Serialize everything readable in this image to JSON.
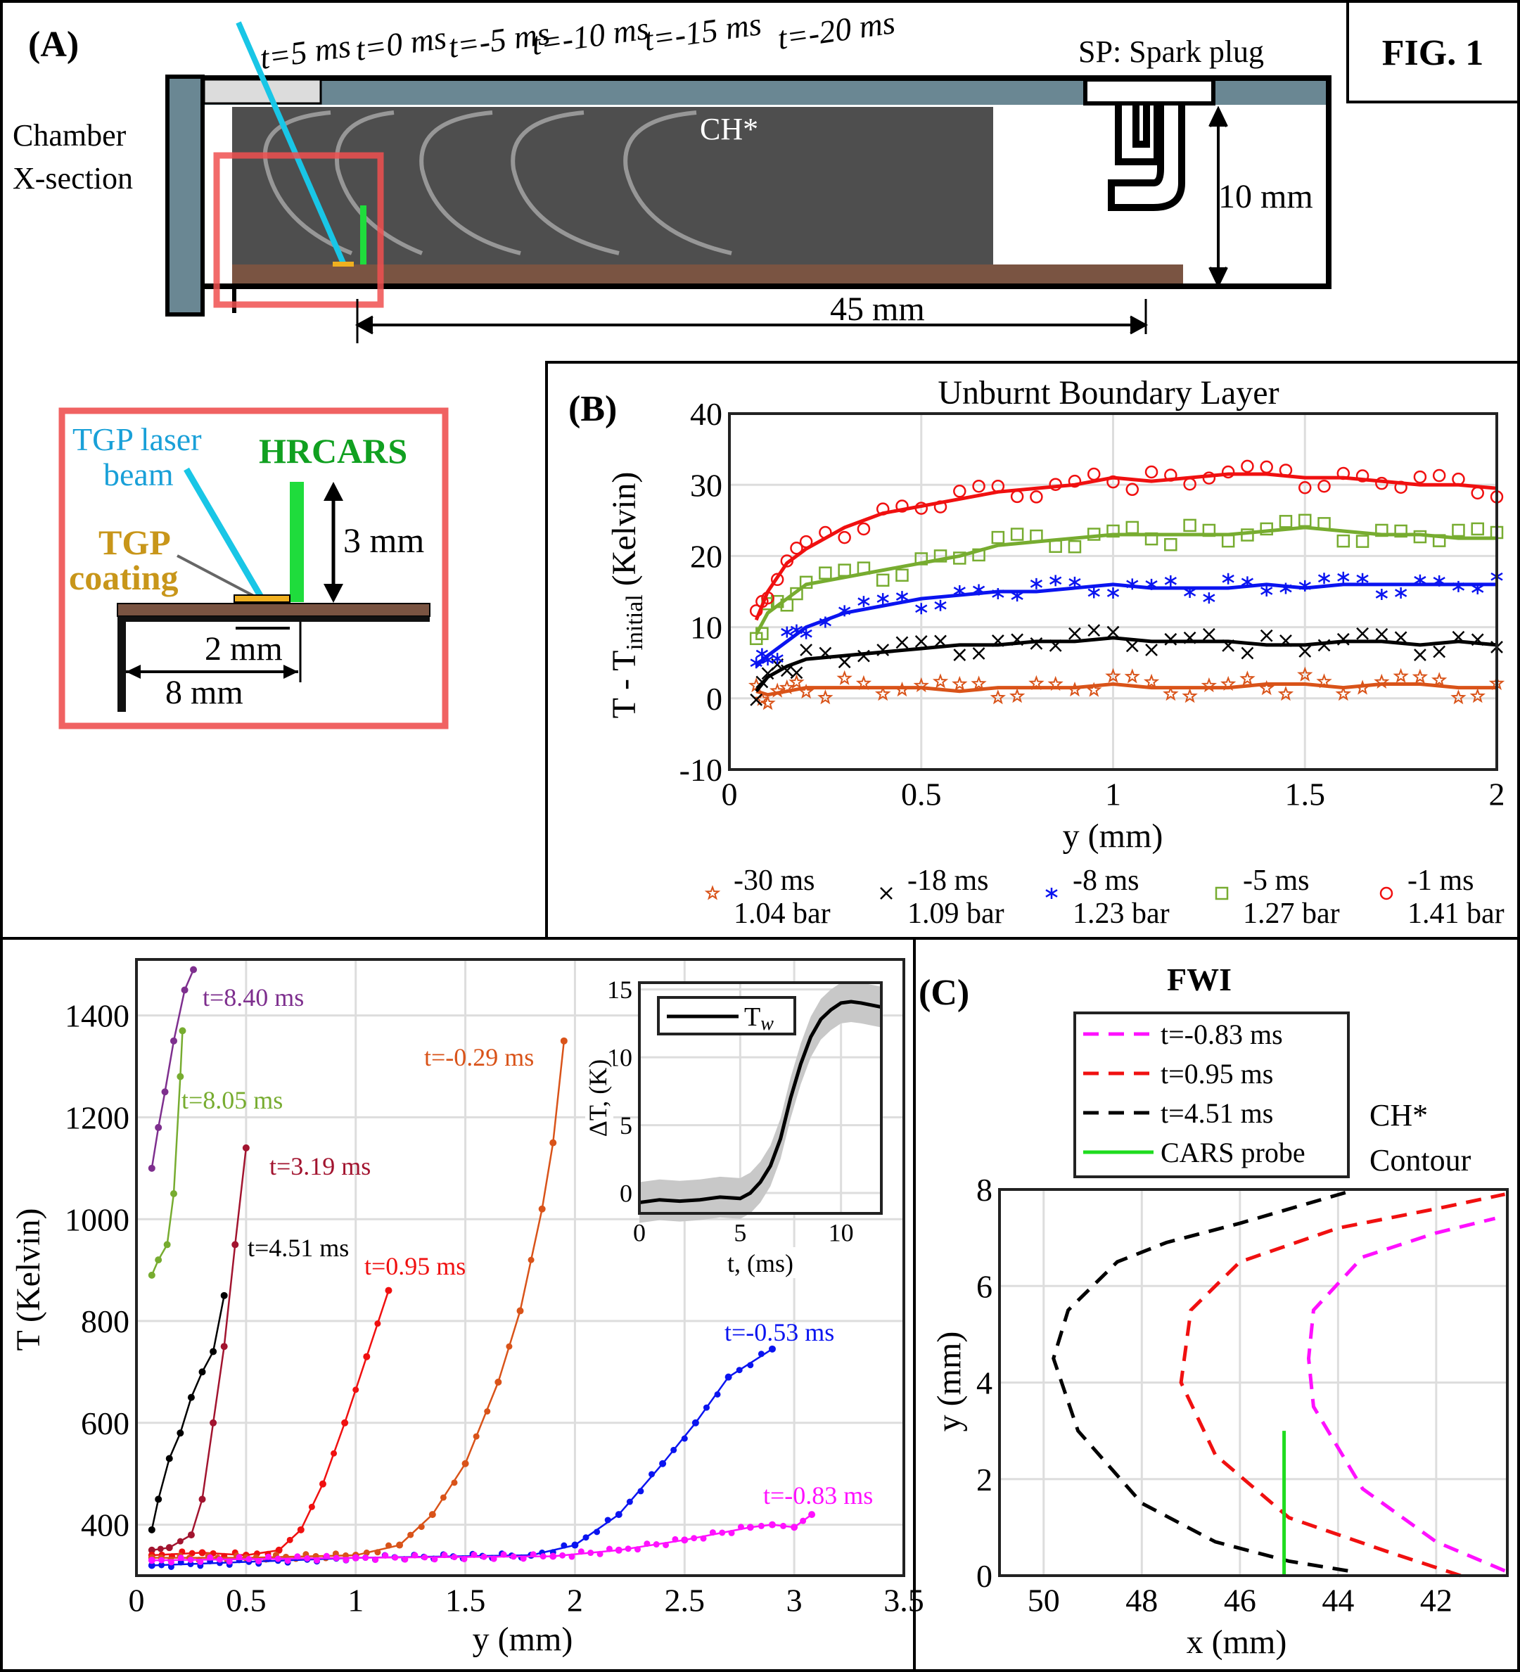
{
  "figure_label": "FIG. 1",
  "panel_a": {
    "label": "(A)",
    "chamber_label_1": "Chamber",
    "chamber_label_2": "X-section",
    "times": [
      "t=5 ms",
      "t=0 ms",
      "t=-5 ms",
      "t=-10 ms",
      "t=-15 ms",
      "t=-20 ms"
    ],
    "spark_plug": "SP: Spark plug",
    "ch_star": "CH*",
    "height_dim": "10 mm",
    "length_dim": "45 mm",
    "inset": {
      "laser_1": "TGP laser",
      "laser_2": "beam",
      "hrcars": "HRCARS",
      "coating_1": "TGP",
      "coating_2": "coating",
      "dim_3mm": "3 mm",
      "dim_2mm": "2 mm",
      "dim_8mm": "8 mm"
    },
    "colors": {
      "wall": "#6a8793",
      "floor": "#7a5442",
      "laser": "#19c6e6",
      "cars": "#1fdc3c",
      "coating": "#f0b020",
      "inset_border": "#f06262"
    }
  },
  "chart_data": [
    {
      "id": "panel-b",
      "panel_label": "(B)",
      "type": "scatter",
      "title": "Unburnt Boundary Layer",
      "xlabel": "y (mm)",
      "ylabel": "T - T",
      "ylabel_sub": "initial",
      "ylabel_tail": " (Kelvin)",
      "xlim": [
        0,
        2
      ],
      "ylim": [
        -10,
        40
      ],
      "xticks": [
        0,
        0.5,
        1,
        1.5,
        2
      ],
      "xtick_labels": [
        "0",
        "0.5",
        "1",
        "1.5",
        "2"
      ],
      "yticks": [
        -10,
        0,
        10,
        20,
        30,
        40
      ],
      "ytick_labels": [
        "-10",
        "0",
        "10",
        "20",
        "30",
        "40"
      ],
      "grid": true,
      "legend_position": "bottom",
      "x": [
        0.07,
        0.1,
        0.15,
        0.2,
        0.3,
        0.4,
        0.5,
        0.6,
        0.7,
        0.8,
        0.9,
        1.0,
        1.1,
        1.2,
        1.3,
        1.4,
        1.5,
        1.6,
        1.7,
        1.8,
        1.9,
        2.0
      ],
      "series": [
        {
          "name": "-30 ms",
          "name2": "1.04 bar",
          "marker": "star",
          "color": "#d95319",
          "values": [
            1,
            0.5,
            1,
            1.5,
            1.5,
            1.5,
            1.5,
            1,
            1.5,
            1.5,
            1.5,
            2,
            1.5,
            1.5,
            1.5,
            2,
            2,
            1.5,
            2,
            2,
            1.5,
            1.5
          ]
        },
        {
          "name": "-18 ms",
          "name2": "1.09 bar",
          "marker": "x",
          "color": "#000000",
          "values": [
            1,
            3,
            4.5,
            5.5,
            6,
            6.5,
            7,
            7.5,
            7.5,
            8,
            8,
            8.5,
            8,
            8,
            8,
            7.5,
            7.5,
            8,
            8,
            7.5,
            8,
            7.5
          ]
        },
        {
          "name": "-8 ms",
          "name2": "1.23 bar",
          "marker": "asterisk",
          "color": "#0a14f0",
          "values": [
            4.5,
            6,
            8,
            10,
            12,
            13,
            14,
            14.5,
            15,
            15,
            15.5,
            16,
            15.5,
            15.5,
            15.5,
            16,
            15.5,
            16,
            16,
            16,
            16,
            16
          ]
        },
        {
          "name": "-5 ms",
          "name2": "1.27 bar",
          "marker": "square",
          "color": "#77ac30",
          "values": [
            9,
            12,
            14,
            16,
            17,
            18,
            19,
            20,
            21.5,
            22,
            22.5,
            23,
            23,
            23,
            23,
            23.5,
            24,
            23.5,
            23,
            23,
            22.5,
            22.5
          ]
        },
        {
          "name": "-1 ms",
          "name2": "1.41 bar",
          "marker": "circle",
          "color": "#f01010",
          "values": [
            11,
            15,
            19,
            21,
            24,
            26,
            27,
            28,
            29,
            29.5,
            30,
            31,
            30.5,
            31,
            31.5,
            31.5,
            31,
            31,
            30.5,
            30,
            30,
            29.5
          ]
        }
      ]
    },
    {
      "id": "panel-temperature",
      "type": "line",
      "xlabel": "y (mm)",
      "ylabel": "T (Kelvin)",
      "xlim": [
        0,
        3.5
      ],
      "ylim": [
        300,
        1510
      ],
      "xticks": [
        0,
        0.5,
        1,
        1.5,
        2,
        2.5,
        3,
        3.5
      ],
      "xtick_labels": [
        "0",
        "0.5",
        "1",
        "1.5",
        "2",
        "2.5",
        "3",
        "3.5"
      ],
      "yticks": [
        400,
        600,
        800,
        1000,
        1200,
        1400
      ],
      "ytick_labels": [
        "400",
        "600",
        "800",
        "1000",
        "1200",
        "1400"
      ],
      "grid": true,
      "series": [
        {
          "name": "t=8.40 ms",
          "color": "#7e2f8e",
          "points": [
            [
              0.07,
              1100
            ],
            [
              0.1,
              1180
            ],
            [
              0.13,
              1250
            ],
            [
              0.17,
              1350
            ],
            [
              0.22,
              1450
            ],
            [
              0.26,
              1490
            ]
          ]
        },
        {
          "name": "t=8.05 ms",
          "color": "#77ac30",
          "points": [
            [
              0.07,
              890
            ],
            [
              0.1,
              920
            ],
            [
              0.14,
              950
            ],
            [
              0.17,
              1050
            ],
            [
              0.2,
              1280
            ],
            [
              0.21,
              1370
            ]
          ]
        },
        {
          "name": "t=3.19 ms",
          "color": "#a2142f",
          "points": [
            [
              0.07,
              350
            ],
            [
              0.15,
              355
            ],
            [
              0.25,
              380
            ],
            [
              0.3,
              450
            ],
            [
              0.35,
              600
            ],
            [
              0.4,
              750
            ],
            [
              0.45,
              950
            ],
            [
              0.5,
              1140
            ]
          ]
        },
        {
          "name": "t=4.51 ms",
          "color": "#000000",
          "points": [
            [
              0.07,
              390
            ],
            [
              0.1,
              450
            ],
            [
              0.15,
              530
            ],
            [
              0.2,
              580
            ],
            [
              0.25,
              650
            ],
            [
              0.3,
              700
            ],
            [
              0.35,
              740
            ],
            [
              0.4,
              850
            ]
          ]
        },
        {
          "name": "t=0.95 ms",
          "color": "#f01010",
          "points": [
            [
              0.07,
              340
            ],
            [
              0.3,
              345
            ],
            [
              0.5,
              340
            ],
            [
              0.65,
              350
            ],
            [
              0.75,
              390
            ],
            [
              0.85,
              480
            ],
            [
              0.95,
              600
            ],
            [
              1.05,
              730
            ],
            [
              1.15,
              860
            ]
          ]
        },
        {
          "name": "t=-0.29 ms",
          "color": "#d95319",
          "points": [
            [
              0.07,
              335
            ],
            [
              0.5,
              335
            ],
            [
              1.0,
              340
            ],
            [
              1.2,
              360
            ],
            [
              1.35,
              420
            ],
            [
              1.5,
              520
            ],
            [
              1.65,
              680
            ],
            [
              1.75,
              820
            ],
            [
              1.85,
              1020
            ],
            [
              1.9,
              1150
            ],
            [
              1.95,
              1350
            ]
          ]
        },
        {
          "name": "t=-0.53 ms",
          "color": "#0a14f0",
          "points": [
            [
              0.07,
              320
            ],
            [
              1.0,
              335
            ],
            [
              1.8,
              340
            ],
            [
              2.0,
              360
            ],
            [
              2.2,
              420
            ],
            [
              2.4,
              520
            ],
            [
              2.55,
              600
            ],
            [
              2.7,
              690
            ],
            [
              2.9,
              745
            ]
          ]
        },
        {
          "name": "t=-0.83 ms",
          "color": "#ff10ff",
          "points": [
            [
              0.07,
              330
            ],
            [
              1.0,
              335
            ],
            [
              1.9,
              338
            ],
            [
              2.2,
              350
            ],
            [
              2.5,
              370
            ],
            [
              2.8,
              395
            ],
            [
              2.9,
              400
            ],
            [
              3.0,
              395
            ],
            [
              3.08,
              420
            ]
          ]
        }
      ]
    },
    {
      "id": "panel-inset",
      "type": "line",
      "xlabel": "t, (ms)",
      "ylabel": "ΔT, (K)",
      "xlim": [
        0,
        12
      ],
      "ylim": [
        -1.5,
        15.5
      ],
      "xticks": [
        0,
        5,
        10
      ],
      "xtick_labels": [
        "0",
        "5",
        "10"
      ],
      "yticks": [
        0,
        5,
        10,
        15
      ],
      "ytick_labels": [
        "0",
        "5",
        "10",
        "15"
      ],
      "grid": true,
      "legend_position": "top-left",
      "series": [
        {
          "name": "T",
          "name_sub": "w",
          "color": "#000000",
          "band_halfwidth": 1.5,
          "points": [
            [
              0,
              -0.7
            ],
            [
              1,
              -0.5
            ],
            [
              2,
              -0.6
            ],
            [
              3,
              -0.5
            ],
            [
              4,
              -0.3
            ],
            [
              5,
              -0.4
            ],
            [
              5.5,
              0
            ],
            [
              6,
              0.8
            ],
            [
              6.5,
              2
            ],
            [
              7,
              4
            ],
            [
              7.5,
              7
            ],
            [
              8,
              9.5
            ],
            [
              8.5,
              11.5
            ],
            [
              9,
              12.8
            ],
            [
              9.5,
              13.5
            ],
            [
              10,
              14
            ],
            [
              10.5,
              14.1
            ],
            [
              11,
              14
            ],
            [
              12,
              13.7
            ]
          ]
        }
      ]
    },
    {
      "id": "panel-c",
      "panel_label": "(C)",
      "type": "line",
      "title": "FWI",
      "xlabel": "x (mm)",
      "ylabel": "y (mm)",
      "xlim": [
        50.9,
        40.55
      ],
      "ylim": [
        0,
        8
      ],
      "xticks": [
        50,
        48,
        46,
        44,
        42
      ],
      "xtick_labels": [
        "50",
        "48",
        "46",
        "44",
        "42"
      ],
      "yticks": [
        0,
        2,
        4,
        6,
        8
      ],
      "ytick_labels": [
        "0",
        "2",
        "4",
        "6",
        "8"
      ],
      "grid": true,
      "legend_position": "top",
      "side_note_1": "CH*",
      "side_note_2": "Contour",
      "series": [
        {
          "name": "t=-0.83 ms",
          "color": "#ff10ff",
          "dash": true,
          "points": [
            [
              40.6,
              0.1
            ],
            [
              42,
              0.7
            ],
            [
              43.5,
              1.8
            ],
            [
              44.5,
              3.5
            ],
            [
              44.6,
              4.5
            ],
            [
              44.5,
              5.5
            ],
            [
              43.5,
              6.6
            ],
            [
              42,
              7.1
            ],
            [
              40.8,
              7.4
            ]
          ]
        },
        {
          "name": "t=0.95 ms",
          "color": "#f01010",
          "dash": true,
          "points": [
            [
              41.5,
              0
            ],
            [
              43,
              0.5
            ],
            [
              45,
              1.2
            ],
            [
              46.5,
              2.5
            ],
            [
              47.2,
              4
            ],
            [
              47,
              5.5
            ],
            [
              46,
              6.5
            ],
            [
              44,
              7.2
            ],
            [
              42,
              7.6
            ],
            [
              40.6,
              7.9
            ]
          ]
        },
        {
          "name": "t=4.51 ms",
          "color": "#000000",
          "dash": true,
          "points": [
            [
              43.8,
              0.1
            ],
            [
              45,
              0.3
            ],
            [
              46.5,
              0.7
            ],
            [
              48,
              1.5
            ],
            [
              49.3,
              3
            ],
            [
              49.8,
              4.5
            ],
            [
              49.5,
              5.5
            ],
            [
              48.5,
              6.5
            ],
            [
              47.5,
              6.9
            ],
            [
              46,
              7.3
            ],
            [
              43.8,
              7.95
            ]
          ]
        },
        {
          "name": "CARS probe",
          "color": "#1fdc1f",
          "dash": false,
          "points": [
            [
              45.1,
              0
            ],
            [
              45.1,
              3
            ]
          ]
        }
      ]
    }
  ]
}
